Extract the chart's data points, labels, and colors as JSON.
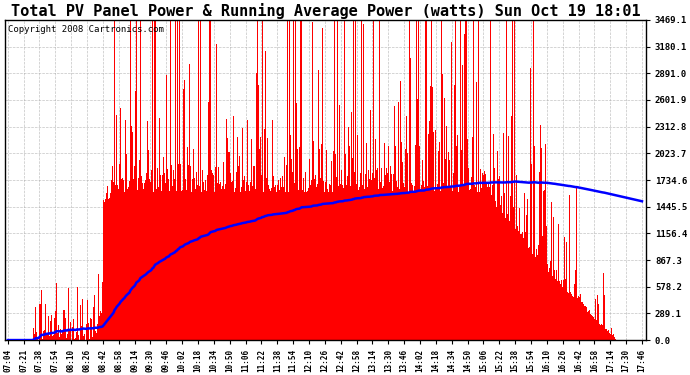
{
  "title": "Total PV Panel Power & Running Average Power (watts) Sun Oct 19 18:01",
  "copyright": "Copyright 2008 Cartronics.com",
  "yticks": [
    0.0,
    289.1,
    578.2,
    867.3,
    1156.4,
    1445.5,
    1734.6,
    2023.7,
    2312.8,
    2601.9,
    2891.0,
    3180.1,
    3469.1
  ],
  "ymax": 3469.1,
  "ymin": 0.0,
  "bar_color": "#FF0000",
  "avg_color": "#0000FF",
  "background_color": "#FFFFFF",
  "grid_color": "#AAAAAA",
  "title_fontsize": 11,
  "copyright_fontsize": 6.5,
  "xtick_labels": [
    "07:04",
    "07:21",
    "07:38",
    "07:54",
    "08:10",
    "08:26",
    "08:42",
    "08:58",
    "09:14",
    "09:30",
    "09:46",
    "10:02",
    "10:18",
    "10:34",
    "10:50",
    "11:06",
    "11:22",
    "11:38",
    "11:54",
    "12:10",
    "12:26",
    "12:42",
    "12:58",
    "13:14",
    "13:30",
    "13:46",
    "14:02",
    "14:18",
    "14:34",
    "14:50",
    "15:06",
    "15:22",
    "15:38",
    "15:54",
    "16:10",
    "16:26",
    "16:42",
    "16:58",
    "17:14",
    "17:30",
    "17:46"
  ],
  "figwidth": 6.9,
  "figheight": 3.75,
  "dpi": 100
}
